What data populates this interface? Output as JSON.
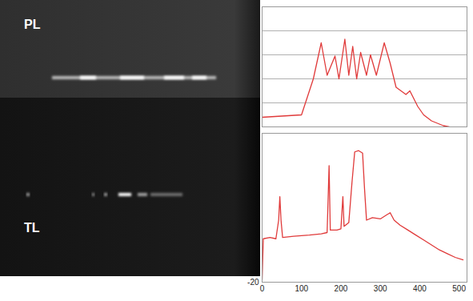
{
  "image_panels": [
    {
      "label": "PL"
    },
    {
      "label": "TL"
    }
  ],
  "chart_data": [
    {
      "type": "line",
      "color": "#e03a3a",
      "grid": true,
      "tick_labels": false,
      "xlim": [
        0,
        520
      ],
      "ylim": [
        0,
        100
      ],
      "yticks": [
        0,
        20,
        40,
        60,
        80,
        100
      ],
      "x": [
        0,
        50,
        100,
        115,
        130,
        150,
        165,
        185,
        195,
        210,
        220,
        230,
        240,
        250,
        265,
        275,
        290,
        310,
        325,
        340,
        365,
        375,
        395,
        410,
        430,
        460,
        475
      ],
      "values": [
        8,
        9,
        10,
        25,
        40,
        70,
        43,
        59,
        40,
        73,
        43,
        67,
        40,
        62,
        43,
        60,
        43,
        70,
        53,
        33,
        27,
        30,
        17,
        10,
        5,
        1,
        0
      ]
    },
    {
      "type": "line",
      "color": "#e03a3a",
      "grid": true,
      "xlim": [
        0,
        520
      ],
      "xticks": [
        0,
        100,
        200,
        300,
        400,
        500
      ],
      "ylim": [
        -20,
        100
      ],
      "yticks": [
        -20
      ],
      "x": [
        0,
        3,
        20,
        35,
        42,
        45,
        48,
        52,
        80,
        120,
        150,
        165,
        170,
        173,
        190,
        200,
        205,
        208,
        220,
        228,
        235,
        245,
        255,
        260,
        265,
        280,
        300,
        315,
        325,
        335,
        350,
        370,
        390,
        410,
        430,
        450,
        470,
        490,
        510
      ],
      "values": [
        -18,
        15,
        16,
        15,
        30,
        49,
        30,
        16,
        17,
        18,
        19,
        20,
        74,
        22,
        22,
        23,
        49,
        25,
        28,
        60,
        85,
        86,
        84,
        55,
        30,
        32,
        31,
        34,
        36,
        30,
        26,
        22,
        18,
        14,
        10,
        6,
        3,
        0,
        -2
      ]
    }
  ]
}
